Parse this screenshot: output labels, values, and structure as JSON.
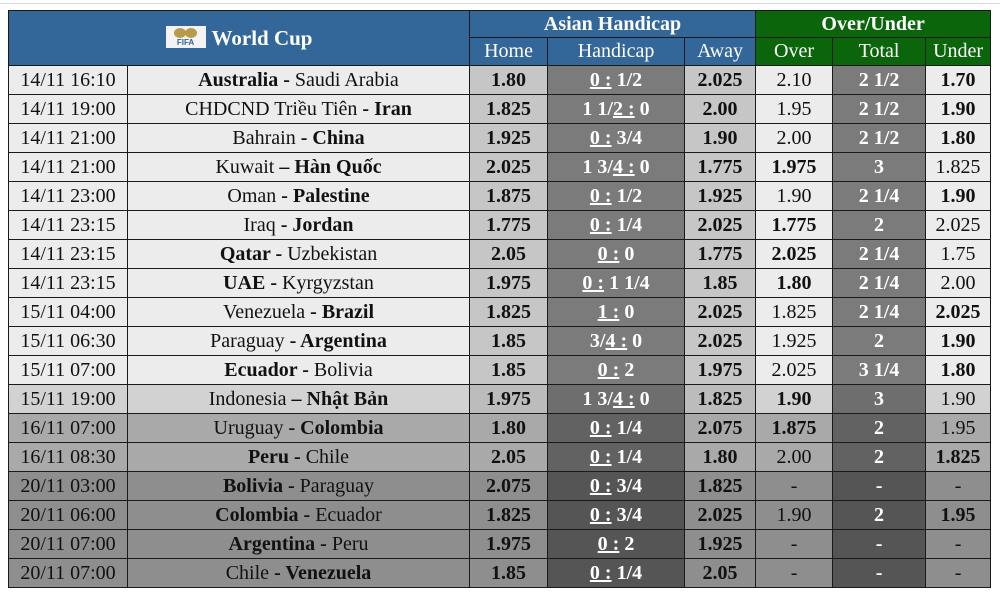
{
  "header": {
    "logo_icon": "fifa-logo-icon",
    "logo_text": "FIFA",
    "title": "World Cup",
    "asian_handicap": "Asian Handicap",
    "over_under": "Over/Under",
    "columns": {
      "home": "Home",
      "handicap": "Handicap",
      "away": "Away",
      "over": "Over",
      "total": "Total",
      "under": "Under"
    }
  },
  "colors": {
    "header_blue": "#336699",
    "header_green": "#0b650b"
  },
  "rows": [
    {
      "shade": "s1",
      "date": "14/11 16:10",
      "home_team": "Australia",
      "sep": " - ",
      "away_team": "Saudi Arabia",
      "fav": "home",
      "home": "1.80",
      "hc": {
        "pre": "",
        "u": "0 :",
        "post": " 1/2"
      },
      "away": "2.025",
      "over": "2.10",
      "over_b": false,
      "total": "2 1/2",
      "under": "1.70",
      "under_b": true
    },
    {
      "shade": "s1",
      "date": "14/11 19:00",
      "home_team": "CHDCND Triều Tiên",
      "sep": " - ",
      "away_team": "Iran",
      "fav": "away",
      "home": "1.825",
      "hc": {
        "pre": "1 1/",
        "u": "2 :",
        "post": " 0"
      },
      "away": "2.00",
      "over": "1.95",
      "over_b": false,
      "total": "2 1/2",
      "under": "1.90",
      "under_b": true
    },
    {
      "shade": "s1",
      "date": "14/11 21:00",
      "home_team": "Bahrain",
      "sep": " - ",
      "away_team": "China",
      "fav": "away",
      "home": "1.925",
      "hc": {
        "pre": "",
        "u": "0 :",
        "post": " 3/4"
      },
      "away": "1.90",
      "over": "2.00",
      "over_b": false,
      "total": "2 1/2",
      "under": "1.80",
      "under_b": true
    },
    {
      "shade": "s1",
      "date": "14/11 21:00",
      "home_team": "Kuwait",
      "sep": " – ",
      "away_team": "Hàn Quốc",
      "fav": "away",
      "home": "2.025",
      "hc": {
        "pre": "1 3/",
        "u": "4 :",
        "post": " 0"
      },
      "away": "1.775",
      "over": "1.975",
      "over_b": true,
      "total": "3",
      "under": "1.825",
      "under_b": false
    },
    {
      "shade": "s1",
      "date": "14/11 23:00",
      "home_team": "Oman",
      "sep": " - ",
      "away_team": "Palestine",
      "fav": "away",
      "home": "1.875",
      "hc": {
        "pre": "",
        "u": "0 :",
        "post": " 1/2"
      },
      "away": "1.925",
      "over": "1.90",
      "over_b": false,
      "total": "2 1/4",
      "under": "1.90",
      "under_b": true
    },
    {
      "shade": "s1",
      "date": "14/11 23:15",
      "home_team": "Iraq",
      "sep": " - ",
      "away_team": "Jordan",
      "fav": "away",
      "home": "1.775",
      "hc": {
        "pre": "",
        "u": "0 :",
        "post": " 1/4"
      },
      "away": "2.025",
      "over": "1.775",
      "over_b": true,
      "total": "2",
      "under": "2.025",
      "under_b": false
    },
    {
      "shade": "s1",
      "date": "14/11 23:15",
      "home_team": "Qatar",
      "sep": " - ",
      "away_team": "Uzbekistan",
      "fav": "home",
      "home": "2.05",
      "hc": {
        "pre": "",
        "u": "0 :",
        "post": " 0"
      },
      "away": "1.775",
      "over": "2.025",
      "over_b": true,
      "total": "2 1/4",
      "under": "1.75",
      "under_b": false
    },
    {
      "shade": "s1",
      "date": "14/11 23:15",
      "home_team": "UAE",
      "sep": " - ",
      "away_team": "Kyrgyzstan",
      "fav": "home",
      "home": "1.975",
      "hc": {
        "pre": "",
        "u": "0 :",
        "post": " 1 1/4"
      },
      "away": "1.85",
      "over": "1.80",
      "over_b": true,
      "total": "2 1/4",
      "under": "2.00",
      "under_b": false
    },
    {
      "shade": "s1",
      "date": "15/11 04:00",
      "home_team": "Venezuela",
      "sep": " - ",
      "away_team": "Brazil",
      "fav": "away",
      "home": "1.825",
      "hc": {
        "pre": "",
        "u": "1 :",
        "post": " 0"
      },
      "away": "2.025",
      "over": "1.825",
      "over_b": false,
      "total": "2 1/4",
      "under": "2.025",
      "under_b": true
    },
    {
      "shade": "s1",
      "date": "15/11 06:30",
      "home_team": "Paraguay",
      "sep": " - ",
      "away_team": "Argentina",
      "fav": "away",
      "home": "1.85",
      "hc": {
        "pre": "3/",
        "u": "4 :",
        "post": " 0"
      },
      "away": "2.025",
      "over": "1.925",
      "over_b": false,
      "total": "2",
      "under": "1.90",
      "under_b": true
    },
    {
      "shade": "s1",
      "date": "15/11 07:00",
      "home_team": "Ecuador",
      "sep": " - ",
      "away_team": "Bolivia",
      "fav": "home",
      "home": "1.85",
      "hc": {
        "pre": "",
        "u": "0 :",
        "post": " 2"
      },
      "away": "1.975",
      "over": "2.025",
      "over_b": false,
      "total": "3 1/4",
      "under": "1.80",
      "under_b": true
    },
    {
      "shade": "s2",
      "date": "15/11 19:00",
      "home_team": "Indonesia",
      "sep": " – ",
      "away_team": "Nhật Bản",
      "fav": "away",
      "home": "1.975",
      "hc": {
        "pre": "1 3/",
        "u": "4 :",
        "post": " 0"
      },
      "away": "1.825",
      "over": "1.90",
      "over_b": true,
      "total": "3",
      "under": "1.90",
      "under_b": false
    },
    {
      "shade": "s3",
      "date": "16/11 07:00",
      "home_team": "Uruguay",
      "sep": " - ",
      "away_team": "Colombia",
      "fav": "away",
      "home": "1.80",
      "hc": {
        "pre": "",
        "u": "0 :",
        "post": " 1/4"
      },
      "away": "2.075",
      "over": "1.875",
      "over_b": true,
      "total": "2",
      "under": "1.95",
      "under_b": false
    },
    {
      "shade": "s3",
      "date": "16/11 08:30",
      "home_team": "Peru",
      "sep": " - ",
      "away_team": "Chile",
      "fav": "home",
      "home": "2.05",
      "hc": {
        "pre": "",
        "u": "0 :",
        "post": " 1/4"
      },
      "away": "1.80",
      "over": "2.00",
      "over_b": false,
      "total": "2",
      "under": "1.825",
      "under_b": true
    },
    {
      "shade": "s4",
      "date": "20/11 03:00",
      "home_team": "Bolivia",
      "sep": " - ",
      "away_team": "Paraguay",
      "fav": "home",
      "home": "2.075",
      "hc": {
        "pre": "",
        "u": "0 :",
        "post": " 3/4"
      },
      "away": "1.825",
      "over": "-",
      "over_b": false,
      "total": "-",
      "under": "-",
      "under_b": false
    },
    {
      "shade": "s4",
      "date": "20/11 06:00",
      "home_team": "Colombia",
      "sep": " - ",
      "away_team": "Ecuador",
      "fav": "home",
      "home": "1.825",
      "hc": {
        "pre": "",
        "u": "0 :",
        "post": " 3/4"
      },
      "away": "2.025",
      "over": "1.90",
      "over_b": false,
      "total": "2",
      "under": "1.95",
      "under_b": true
    },
    {
      "shade": "s4",
      "date": "20/11 07:00",
      "home_team": "Argentina",
      "sep": " - ",
      "away_team": "Peru",
      "fav": "home",
      "home": "1.975",
      "hc": {
        "pre": "",
        "u": "0 :",
        "post": " 2"
      },
      "away": "1.925",
      "over": "-",
      "over_b": false,
      "total": "-",
      "under": "-",
      "under_b": false
    },
    {
      "shade": "s4",
      "date": "20/11 07:00",
      "home_team": "Chile",
      "sep": " - ",
      "away_team": "Venezuela",
      "fav": "away",
      "home": "1.85",
      "hc": {
        "pre": "",
        "u": "0 :",
        "post": " 1/4"
      },
      "away": "2.05",
      "over": "-",
      "over_b": false,
      "total": "-",
      "under": "-",
      "under_b": false
    }
  ]
}
